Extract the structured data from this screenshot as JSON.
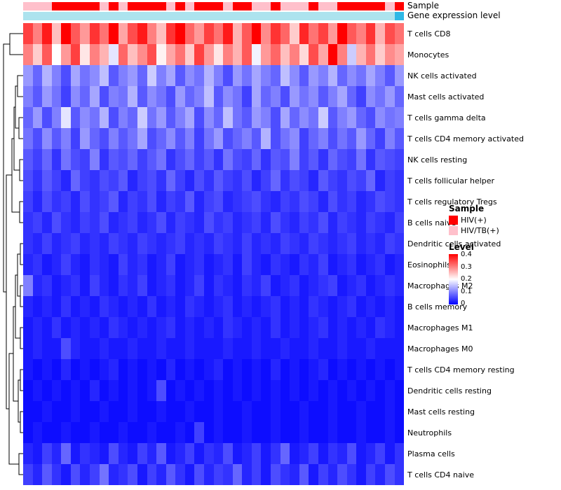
{
  "annotations": {
    "sample_label": "Sample",
    "gene_label": "Gene expression level",
    "sample_colors": {
      "HIV(+)": "#FF0000",
      "HIV/TB(+)": "#FFC0CB"
    },
    "sample_values": [
      "HIV/TB(+)",
      "HIV/TB(+)",
      "HIV/TB(+)",
      "HIV(+)",
      "HIV(+)",
      "HIV(+)",
      "HIV(+)",
      "HIV(+)",
      "HIV/TB(+)",
      "HIV(+)",
      "HIV/TB(+)",
      "HIV(+)",
      "HIV(+)",
      "HIV(+)",
      "HIV(+)",
      "HIV/TB(+)",
      "HIV(+)",
      "HIV/TB(+)",
      "HIV(+)",
      "HIV(+)",
      "HIV(+)",
      "HIV/TB(+)",
      "HIV(+)",
      "HIV(+)",
      "HIV/TB(+)",
      "HIV/TB(+)",
      "HIV(+)",
      "HIV/TB(+)",
      "HIV/TB(+)",
      "HIV/TB(+)",
      "HIV(+)",
      "HIV/TB(+)",
      "HIV/TB(+)",
      "HIV(+)",
      "HIV(+)",
      "HIV(+)",
      "HIV(+)",
      "HIV(+)",
      "HIV/TB(+)",
      "HIV(+)"
    ],
    "gene_values": [
      "#ADE3EE",
      "#ADE3EE",
      "#ADE3EE",
      "#ADE3EE",
      "#ADE3EE",
      "#ADE3EE",
      "#ADE3EE",
      "#ADE3EE",
      "#ADE3EE",
      "#ADE3EE",
      "#ADE3EE",
      "#ADE3EE",
      "#ADE3EE",
      "#ADE3EE",
      "#ADE3EE",
      "#ADE3EE",
      "#ADE3EE",
      "#ADE3EE",
      "#ADE3EE",
      "#ADE3EE",
      "#ADE3EE",
      "#ADE3EE",
      "#ADE3EE",
      "#ADE3EE",
      "#ADE3EE",
      "#ADE3EE",
      "#ADE3EE",
      "#ADE3EE",
      "#ADE3EE",
      "#ADE3EE",
      "#ADE3EE",
      "#ADE3EE",
      "#ADE3EE",
      "#ADE3EE",
      "#ADE3EE",
      "#ADE3EE",
      "#ADE3EE",
      "#ADE3EE",
      "#ADE3EE",
      "#2EB8E6"
    ]
  },
  "legend": {
    "sample_title": "Sample",
    "sample_items": [
      {
        "label": "HIV(+)",
        "color": "#FF0000"
      },
      {
        "label": "HIV/TB(+)",
        "color": "#FFC0CB"
      }
    ],
    "level_title": "Level",
    "level_ticks": [
      "0.4",
      "0.3",
      "0.2",
      "0.1",
      "0"
    ],
    "level_colors": {
      "high": "#FF0000",
      "mid": "#FFFFFF",
      "low": "#0000FF"
    }
  },
  "chart_data": {
    "type": "heatmap",
    "title": "",
    "row_dendrogram": true,
    "vmin": 0,
    "vmax": 0.4,
    "n_cols": 40,
    "rows": [
      "T cells CD8",
      "Monocytes",
      "NK cells activated",
      "Mast cells activated",
      "T cells gamma delta",
      "T cells CD4 memory activated",
      "NK cells resting",
      "T cells follicular helper",
      "T cells regulatory  Tregs",
      "B cells naive",
      "Dendritic cells activated",
      "Eosinophils",
      "Macrophages M2",
      "B cells memory",
      "Macrophages M1",
      "Macrophages M0",
      "T cells CD4 memory resting",
      "Dendritic cells resting",
      "Mast cells resting",
      "Neutrophils",
      "Plasma cells",
      "T cells CD4 naive"
    ],
    "values": [
      [
        0.35,
        0.3,
        0.38,
        0.25,
        0.4,
        0.33,
        0.28,
        0.36,
        0.31,
        0.42,
        0.27,
        0.34,
        0.38,
        0.3,
        0.25,
        0.36,
        0.4,
        0.32,
        0.28,
        0.35,
        0.31,
        0.38,
        0.26,
        0.33,
        0.4,
        0.29,
        0.36,
        0.32,
        0.24,
        0.37,
        0.31,
        0.35,
        0.28,
        0.4,
        0.33,
        0.3,
        0.36,
        0.26,
        0.34,
        0.31
      ],
      [
        0.3,
        0.24,
        0.33,
        0.2,
        0.28,
        0.35,
        0.22,
        0.3,
        0.26,
        0.18,
        0.32,
        0.25,
        0.29,
        0.34,
        0.21,
        0.27,
        0.31,
        0.24,
        0.35,
        0.28,
        0.22,
        0.3,
        0.26,
        0.33,
        0.19,
        0.28,
        0.32,
        0.25,
        0.3,
        0.23,
        0.34,
        0.27,
        0.42,
        0.3,
        0.16,
        0.26,
        0.31,
        0.24,
        0.29,
        0.27
      ],
      [
        0.12,
        0.08,
        0.14,
        0.1,
        0.06,
        0.13,
        0.09,
        0.11,
        0.15,
        0.07,
        0.1,
        0.12,
        0.08,
        0.16,
        0.1,
        0.13,
        0.07,
        0.11,
        0.09,
        0.14,
        0.1,
        0.06,
        0.12,
        0.09,
        0.13,
        0.1,
        0.08,
        0.15,
        0.11,
        0.07,
        0.12,
        0.1,
        0.14,
        0.08,
        0.11,
        0.09,
        0.13,
        0.1,
        0.07,
        0.12
      ],
      [
        0.1,
        0.07,
        0.12,
        0.09,
        0.05,
        0.11,
        0.08,
        0.13,
        0.06,
        0.1,
        0.09,
        0.14,
        0.07,
        0.11,
        0.09,
        0.06,
        0.12,
        0.08,
        0.1,
        0.15,
        0.07,
        0.11,
        0.09,
        0.05,
        0.13,
        0.08,
        0.1,
        0.06,
        0.12,
        0.09,
        0.11,
        0.07,
        0.1,
        0.13,
        0.08,
        0.05,
        0.11,
        0.09,
        0.12,
        0.08
      ],
      [
        0.08,
        0.12,
        0.06,
        0.1,
        0.18,
        0.07,
        0.11,
        0.09,
        0.14,
        0.06,
        0.1,
        0.08,
        0.16,
        0.09,
        0.12,
        0.07,
        0.1,
        0.13,
        0.06,
        0.11,
        0.08,
        0.15,
        0.09,
        0.07,
        0.12,
        0.1,
        0.06,
        0.13,
        0.08,
        0.11,
        0.09,
        0.16,
        0.07,
        0.1,
        0.12,
        0.08,
        0.06,
        0.11,
        0.09,
        0.1
      ],
      [
        0.09,
        0.06,
        0.11,
        0.07,
        0.1,
        0.05,
        0.12,
        0.08,
        0.06,
        0.1,
        0.07,
        0.09,
        0.13,
        0.06,
        0.08,
        0.11,
        0.07,
        0.1,
        0.05,
        0.09,
        0.12,
        0.06,
        0.08,
        0.1,
        0.07,
        0.14,
        0.06,
        0.09,
        0.11,
        0.05,
        0.08,
        0.1,
        0.06,
        0.09,
        0.07,
        0.12,
        0.08,
        0.05,
        0.1,
        0.07
      ],
      [
        0.07,
        0.05,
        0.08,
        0.04,
        0.09,
        0.06,
        0.05,
        0.1,
        0.04,
        0.07,
        0.06,
        0.08,
        0.05,
        0.07,
        0.09,
        0.04,
        0.06,
        0.08,
        0.05,
        0.07,
        0.04,
        0.09,
        0.06,
        0.05,
        0.08,
        0.04,
        0.07,
        0.06,
        0.1,
        0.05,
        0.07,
        0.04,
        0.08,
        0.06,
        0.05,
        0.09,
        0.04,
        0.07,
        0.06,
        0.05
      ],
      [
        0.06,
        0.04,
        0.07,
        0.05,
        0.03,
        0.08,
        0.05,
        0.04,
        0.06,
        0.05,
        0.07,
        0.03,
        0.05,
        0.06,
        0.04,
        0.08,
        0.05,
        0.03,
        0.06,
        0.04,
        0.07,
        0.05,
        0.04,
        0.06,
        0.03,
        0.05,
        0.08,
        0.04,
        0.06,
        0.05,
        0.03,
        0.07,
        0.05,
        0.04,
        0.06,
        0.05,
        0.08,
        0.03,
        0.05,
        0.04
      ],
      [
        0.05,
        0.03,
        0.06,
        0.04,
        0.05,
        0.03,
        0.06,
        0.04,
        0.05,
        0.07,
        0.03,
        0.05,
        0.04,
        0.06,
        0.03,
        0.05,
        0.04,
        0.07,
        0.03,
        0.05,
        0.06,
        0.03,
        0.04,
        0.05,
        0.06,
        0.04,
        0.03,
        0.05,
        0.04,
        0.06,
        0.05,
        0.03,
        0.06,
        0.04,
        0.05,
        0.03,
        0.04,
        0.06,
        0.05,
        0.04
      ],
      [
        0.04,
        0.05,
        0.03,
        0.06,
        0.04,
        0.03,
        0.05,
        0.04,
        0.06,
        0.03,
        0.04,
        0.05,
        0.03,
        0.04,
        0.06,
        0.03,
        0.05,
        0.04,
        0.03,
        0.06,
        0.04,
        0.05,
        0.03,
        0.04,
        0.05,
        0.03,
        0.06,
        0.04,
        0.03,
        0.05,
        0.04,
        0.06,
        0.03,
        0.05,
        0.04,
        0.03,
        0.05,
        0.04,
        0.03,
        0.05
      ],
      [
        0.04,
        0.03,
        0.05,
        0.03,
        0.04,
        0.05,
        0.03,
        0.04,
        0.03,
        0.05,
        0.04,
        0.03,
        0.05,
        0.04,
        0.03,
        0.04,
        0.05,
        0.03,
        0.04,
        0.03,
        0.05,
        0.04,
        0.03,
        0.05,
        0.03,
        0.04,
        0.03,
        0.05,
        0.04,
        0.03,
        0.05,
        0.04,
        0.03,
        0.04,
        0.05,
        0.03,
        0.04,
        0.03,
        0.05,
        0.04
      ],
      [
        0.03,
        0.04,
        0.02,
        0.03,
        0.05,
        0.03,
        0.02,
        0.04,
        0.03,
        0.02,
        0.05,
        0.03,
        0.04,
        0.02,
        0.03,
        0.05,
        0.02,
        0.03,
        0.04,
        0.02,
        0.03,
        0.04,
        0.02,
        0.05,
        0.03,
        0.02,
        0.04,
        0.03,
        0.02,
        0.04,
        0.03,
        0.05,
        0.02,
        0.03,
        0.04,
        0.02,
        0.03,
        0.04,
        0.02,
        0.03
      ],
      [
        0.1,
        0.03,
        0.04,
        0.02,
        0.03,
        0.04,
        0.02,
        0.05,
        0.03,
        0.02,
        0.04,
        0.03,
        0.05,
        0.02,
        0.03,
        0.04,
        0.02,
        0.03,
        0.05,
        0.02,
        0.04,
        0.03,
        0.02,
        0.04,
        0.03,
        0.05,
        0.02,
        0.03,
        0.04,
        0.02,
        0.03,
        0.04,
        0.05,
        0.02,
        0.03,
        0.04,
        0.02,
        0.03,
        0.04,
        0.03
      ],
      [
        0.03,
        0.02,
        0.03,
        0.02,
        0.04,
        0.02,
        0.03,
        0.02,
        0.04,
        0.03,
        0.02,
        0.03,
        0.02,
        0.04,
        0.02,
        0.03,
        0.02,
        0.04,
        0.03,
        0.02,
        0.03,
        0.04,
        0.02,
        0.03,
        0.02,
        0.03,
        0.04,
        0.02,
        0.03,
        0.02,
        0.04,
        0.03,
        0.02,
        0.03,
        0.04,
        0.02,
        0.03,
        0.02,
        0.03,
        0.02
      ],
      [
        0.02,
        0.03,
        0.02,
        0.04,
        0.02,
        0.03,
        0.02,
        0.03,
        0.02,
        0.04,
        0.03,
        0.02,
        0.03,
        0.02,
        0.03,
        0.04,
        0.02,
        0.03,
        0.02,
        0.03,
        0.02,
        0.04,
        0.03,
        0.02,
        0.03,
        0.02,
        0.04,
        0.02,
        0.03,
        0.02,
        0.03,
        0.04,
        0.02,
        0.03,
        0.02,
        0.03,
        0.02,
        0.04,
        0.03,
        0.02
      ],
      [
        0.02,
        0.03,
        0.02,
        0.02,
        0.06,
        0.03,
        0.02,
        0.02,
        0.03,
        0.02,
        0.02,
        0.03,
        0.02,
        0.02,
        0.03,
        0.02,
        0.02,
        0.03,
        0.02,
        0.02,
        0.02,
        0.03,
        0.02,
        0.02,
        0.03,
        0.02,
        0.02,
        0.03,
        0.02,
        0.02,
        0.03,
        0.02,
        0.02,
        0.03,
        0.02,
        0.02,
        0.03,
        0.02,
        0.02,
        0.02
      ],
      [
        0.02,
        0.01,
        0.02,
        0.01,
        0.03,
        0.01,
        0.02,
        0.01,
        0.02,
        0.03,
        0.01,
        0.02,
        0.01,
        0.02,
        0.01,
        0.03,
        0.01,
        0.02,
        0.01,
        0.02,
        0.03,
        0.01,
        0.02,
        0.01,
        0.02,
        0.01,
        0.03,
        0.01,
        0.02,
        0.01,
        0.02,
        0.03,
        0.01,
        0.02,
        0.01,
        0.02,
        0.01,
        0.02,
        0.01,
        0.02
      ],
      [
        0.01,
        0.02,
        0.01,
        0.02,
        0.01,
        0.02,
        0.01,
        0.03,
        0.01,
        0.02,
        0.01,
        0.02,
        0.01,
        0.02,
        0.06,
        0.01,
        0.02,
        0.01,
        0.02,
        0.01,
        0.02,
        0.01,
        0.02,
        0.01,
        0.02,
        0.01,
        0.02,
        0.01,
        0.02,
        0.01,
        0.02,
        0.01,
        0.02,
        0.01,
        0.02,
        0.01,
        0.02,
        0.01,
        0.02,
        0.01
      ],
      [
        0.01,
        0.01,
        0.02,
        0.01,
        0.01,
        0.02,
        0.01,
        0.01,
        0.02,
        0.01,
        0.01,
        0.02,
        0.01,
        0.01,
        0.02,
        0.01,
        0.01,
        0.02,
        0.01,
        0.01,
        0.02,
        0.01,
        0.01,
        0.02,
        0.01,
        0.01,
        0.02,
        0.01,
        0.01,
        0.02,
        0.01,
        0.01,
        0.02,
        0.01,
        0.01,
        0.02,
        0.01,
        0.01,
        0.02,
        0.01
      ],
      [
        0.01,
        0.02,
        0.01,
        0.01,
        0.02,
        0.01,
        0.01,
        0.02,
        0.01,
        0.01,
        0.02,
        0.01,
        0.01,
        0.02,
        0.01,
        0.01,
        0.02,
        0.01,
        0.05,
        0.01,
        0.02,
        0.01,
        0.01,
        0.02,
        0.01,
        0.01,
        0.02,
        0.01,
        0.01,
        0.02,
        0.01,
        0.01,
        0.02,
        0.01,
        0.01,
        0.02,
        0.01,
        0.01,
        0.02,
        0.01
      ],
      [
        0.03,
        0.02,
        0.05,
        0.03,
        0.08,
        0.02,
        0.04,
        0.03,
        0.02,
        0.06,
        0.03,
        0.02,
        0.05,
        0.03,
        0.07,
        0.02,
        0.03,
        0.05,
        0.02,
        0.04,
        0.03,
        0.06,
        0.02,
        0.03,
        0.05,
        0.02,
        0.04,
        0.08,
        0.02,
        0.03,
        0.05,
        0.02,
        0.04,
        0.03,
        0.06,
        0.02,
        0.03,
        0.05,
        0.02,
        0.04
      ],
      [
        0.05,
        0.03,
        0.07,
        0.04,
        0.02,
        0.06,
        0.03,
        0.05,
        0.09,
        0.03,
        0.04,
        0.06,
        0.02,
        0.05,
        0.03,
        0.07,
        0.04,
        0.02,
        0.06,
        0.03,
        0.05,
        0.04,
        0.08,
        0.03,
        0.05,
        0.02,
        0.06,
        0.04,
        0.03,
        0.07,
        0.02,
        0.05,
        0.03,
        0.06,
        0.04,
        0.02,
        0.05,
        0.03,
        0.06,
        0.04
      ]
    ]
  }
}
